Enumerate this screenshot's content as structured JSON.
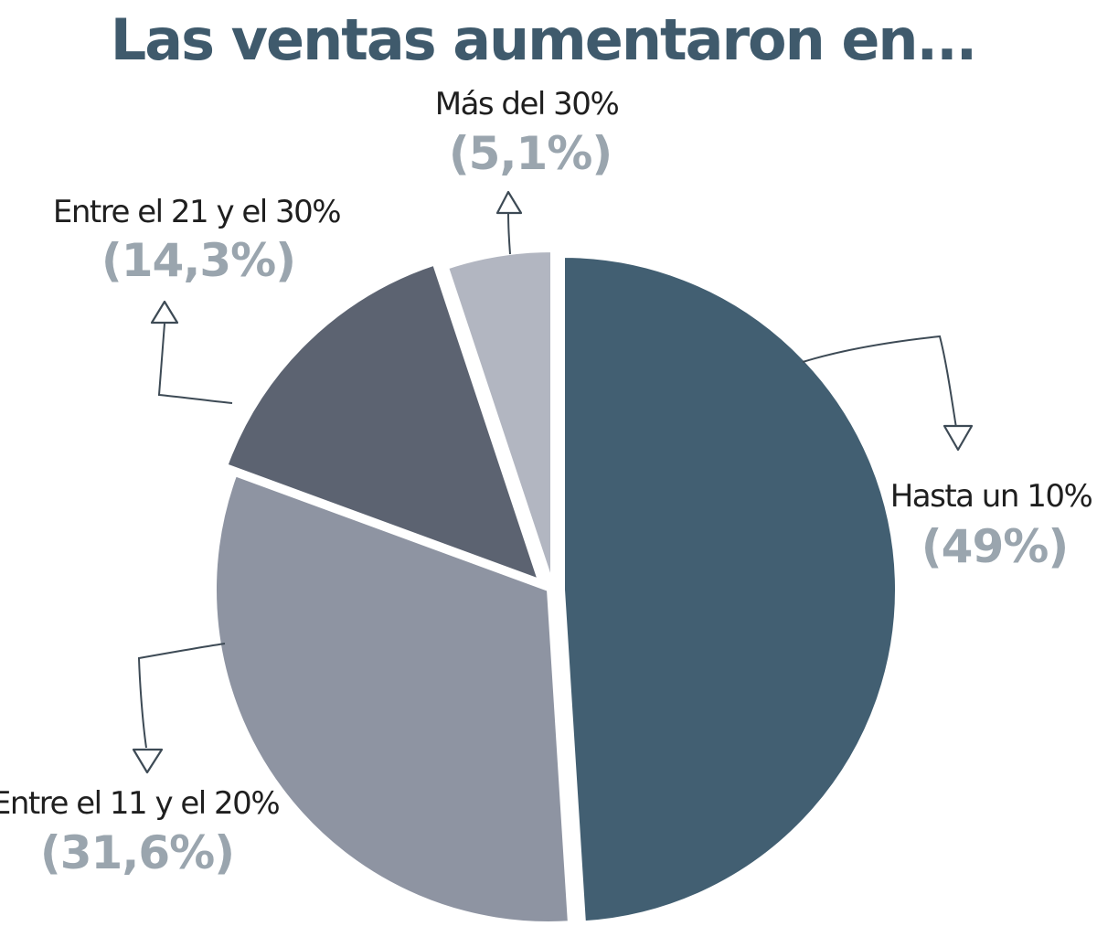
{
  "colors": {
    "title": "#3f5a6c",
    "label_text": "#1f1f1f",
    "percent_text": "#9aa5ae",
    "leader": "#3d4a55",
    "background": "#ffffff"
  },
  "chart_data": {
    "type": "pie",
    "title": "Las ventas aumentaron en...",
    "slices": [
      {
        "label": "Hasta un 10%",
        "value": 49,
        "value_label": "(49%)",
        "color": "#425f72"
      },
      {
        "label": "Entre el 11 y el 20%",
        "value": 31.6,
        "value_label": "(31,6%)",
        "color": "#8e94a2"
      },
      {
        "label": "Entre el 21 y el 30%",
        "value": 14.3,
        "value_label": "(14,3%)",
        "color": "#5c6371"
      },
      {
        "label": "Más del 30%",
        "value": 5.1,
        "value_label": "(5,1%)",
        "color": "#b2b6c1"
      }
    ],
    "start_angle": "12 o'clock",
    "direction": "clockwise",
    "exploded": true,
    "legend": "none"
  }
}
